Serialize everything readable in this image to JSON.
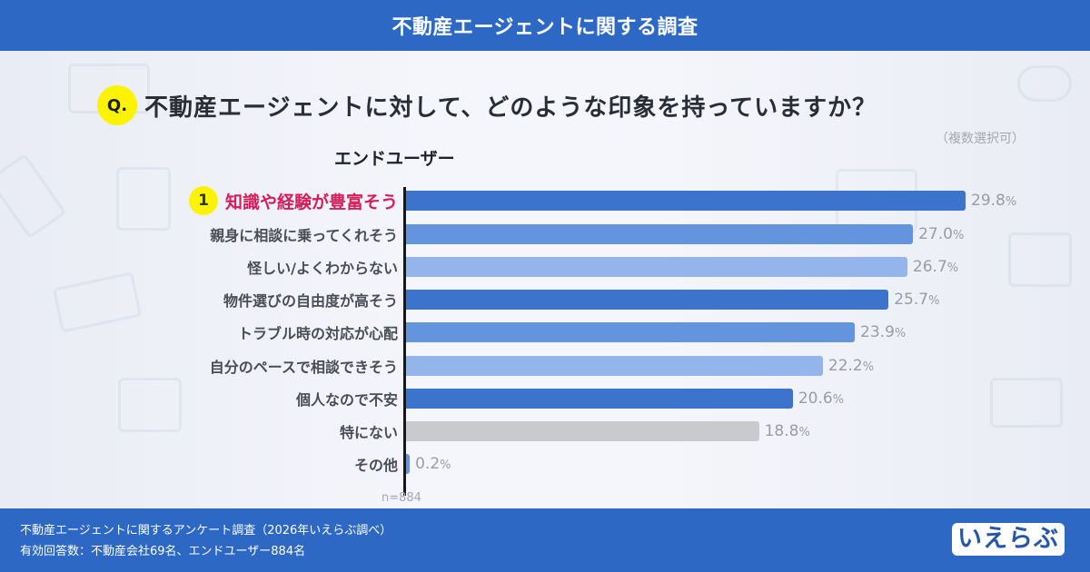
{
  "header": {
    "title": "不動産エージェントに関する調査"
  },
  "question": {
    "badge": "Q.",
    "text": "不動産エージェントに対して、どのような印象を持っていますか？",
    "note": "（複数選択可）"
  },
  "group_label": "エンドユーザー",
  "sample_size": "n=884",
  "footer": {
    "line1": "不動産エージェントに関するアンケート調査（2026年いえらぶ調べ）",
    "line2": "有効回答数：不動産会社69名、エンドユーザー884名",
    "logo": "いえらぶ"
  },
  "colors": {
    "header_bg": "#2d69c4",
    "bar_dark": "#3c73cc",
    "bar_medium": "#6394dd",
    "bar_light": "#94b4ec",
    "bar_grey": "#c9cacd",
    "highlight_text": "#d21f5a",
    "badge_yellow": "#fbf300"
  },
  "chart_data": {
    "type": "bar",
    "orientation": "horizontal",
    "title": "不動産エージェントに対して、どのような印象を持っていますか？",
    "subtitle": "（複数選択可）",
    "series_label": "エンドユーザー",
    "categories": [
      "知識や経験が豊富そう",
      "親身に相談に乗ってくれそう",
      "怪しい/よくわからない",
      "物件選びの自由度が高そう",
      "トラブル時の対応が心配",
      "自分のペースで相談できそう",
      "個人なので不安",
      "特にない",
      "その他"
    ],
    "values": [
      29.8,
      27.0,
      26.7,
      25.7,
      23.9,
      22.2,
      20.6,
      18.8,
      0.2
    ],
    "value_labels": [
      "29.8",
      "27.0",
      "26.7",
      "25.7",
      "23.9",
      "22.2",
      "20.6",
      "18.8",
      "0.2"
    ],
    "unit": "%",
    "highlight_rank": 1,
    "annotation": "n=884",
    "xlabel": "",
    "ylabel": "",
    "xlim": [
      0,
      30
    ],
    "grid": false,
    "legend": null
  },
  "rows": [
    {
      "rank": "1",
      "label": "知識や経験が豊富そう",
      "value": "29.8",
      "pct": "%",
      "color": "#3c73cc"
    },
    {
      "label": "親身に相談に乗ってくれそう",
      "value": "27.0",
      "pct": "%",
      "color": "#6394dd"
    },
    {
      "label": "怪しい/よくわからない",
      "value": "26.7",
      "pct": "%",
      "color": "#94b4ec"
    },
    {
      "label": "物件選びの自由度が高そう",
      "value": "25.7",
      "pct": "%",
      "color": "#3c73cc"
    },
    {
      "label": "トラブル時の対応が心配",
      "value": "23.9",
      "pct": "%",
      "color": "#6394dd"
    },
    {
      "label": "自分のペースで相談できそう",
      "value": "22.2",
      "pct": "%",
      "color": "#94b4ec"
    },
    {
      "label": "個人なので不安",
      "value": "20.6",
      "pct": "%",
      "color": "#3c73cc"
    },
    {
      "label": "特にない",
      "value": "18.8",
      "pct": "%",
      "color": "#c9cacd"
    },
    {
      "label": "その他",
      "value": "0.2",
      "pct": "%",
      "color": "#6394dd"
    }
  ]
}
